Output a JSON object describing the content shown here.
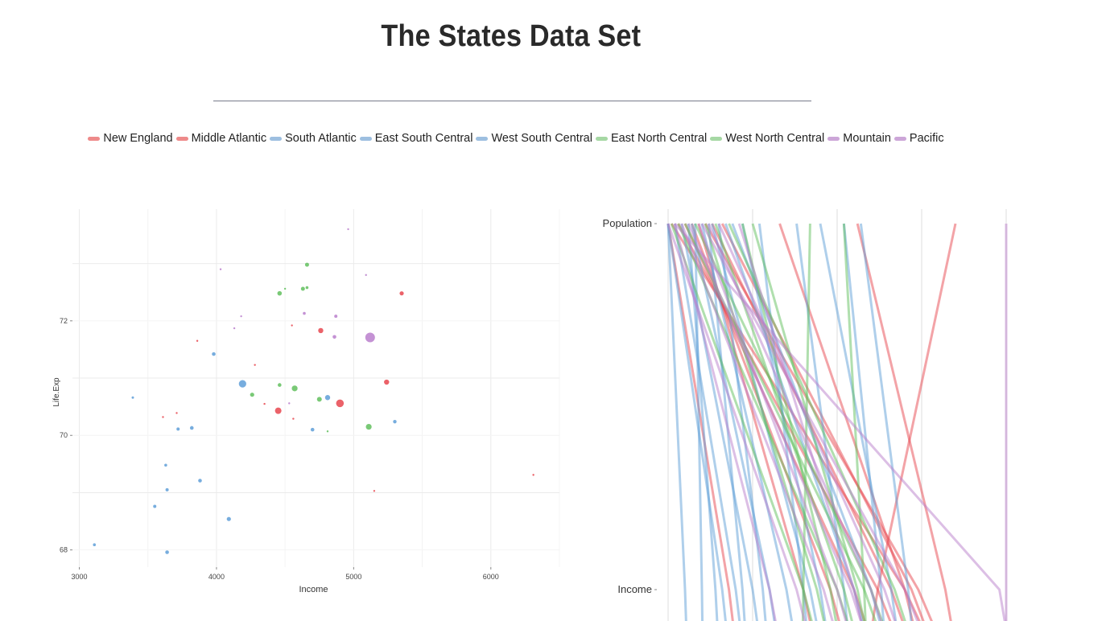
{
  "page": {
    "title": "The States Data Set"
  },
  "legend": {
    "items": [
      {
        "label": "New England",
        "color": "#ee8a8a"
      },
      {
        "label": "Middle Atlantic",
        "color": "#ee8a8a"
      },
      {
        "label": "South Atlantic",
        "color": "#9dbfe0"
      },
      {
        "label": "East South Central",
        "color": "#9dbfe0"
      },
      {
        "label": "West South Central",
        "color": "#9dbfe0"
      },
      {
        "label": "East North Central",
        "color": "#a6d8a4"
      },
      {
        "label": "West North Central",
        "color": "#a6d8a4"
      },
      {
        "label": "Mountain",
        "color": "#cca6d8"
      },
      {
        "label": "Pacific",
        "color": "#cca6d8"
      }
    ]
  },
  "colors": {
    "red": "#e8474f",
    "blue": "#5f9fd8",
    "green": "#62bf5e",
    "purple": "#ba7fcc"
  },
  "chart_data": [
    {
      "type": "scatter",
      "xlabel": "Income",
      "ylabel": "Life.Exp",
      "xlim": [
        2950,
        6500
      ],
      "ylim": [
        67.7,
        73.95
      ],
      "x_ticks": [
        "3000",
        "4000",
        "5000",
        "6000"
      ],
      "x_tick_values": [
        3000,
        4000,
        5000,
        6000
      ],
      "y_ticks": [
        "68",
        "70",
        "72"
      ],
      "y_tick_values": [
        68,
        70,
        72
      ],
      "grid": true,
      "points": [
        {
          "x": 4960,
          "y": 73.6,
          "r": 1.2,
          "color": "purple"
        },
        {
          "x": 4030,
          "y": 72.9,
          "r": 1.2,
          "color": "purple"
        },
        {
          "x": 4660,
          "y": 72.98,
          "r": 2.5,
          "color": "green"
        },
        {
          "x": 5090,
          "y": 72.8,
          "r": 1.2,
          "color": "purple"
        },
        {
          "x": 4630,
          "y": 72.56,
          "r": 2.5,
          "color": "green"
        },
        {
          "x": 4660,
          "y": 72.58,
          "r": 1.8,
          "color": "green"
        },
        {
          "x": 4500,
          "y": 72.56,
          "r": 1.2,
          "color": "green"
        },
        {
          "x": 4460,
          "y": 72.48,
          "r": 2.8,
          "color": "green"
        },
        {
          "x": 5350,
          "y": 72.48,
          "r": 2.6,
          "color": "red"
        },
        {
          "x": 4640,
          "y": 72.13,
          "r": 1.8,
          "color": "purple"
        },
        {
          "x": 4180,
          "y": 72.08,
          "r": 1.2,
          "color": "purple"
        },
        {
          "x": 4870,
          "y": 72.08,
          "r": 2.0,
          "color": "purple"
        },
        {
          "x": 4550,
          "y": 71.92,
          "r": 1.2,
          "color": "red"
        },
        {
          "x": 4130,
          "y": 71.87,
          "r": 1.2,
          "color": "purple"
        },
        {
          "x": 4760,
          "y": 71.83,
          "r": 3.2,
          "color": "red"
        },
        {
          "x": 3860,
          "y": 71.65,
          "r": 1.2,
          "color": "red"
        },
        {
          "x": 4860,
          "y": 71.72,
          "r": 2.3,
          "color": "purple"
        },
        {
          "x": 5120,
          "y": 71.71,
          "r": 6.0,
          "color": "purple"
        },
        {
          "x": 3980,
          "y": 71.42,
          "r": 2.3,
          "color": "blue"
        },
        {
          "x": 4280,
          "y": 71.23,
          "r": 1.2,
          "color": "red"
        },
        {
          "x": 4190,
          "y": 70.9,
          "r": 4.6,
          "color": "blue"
        },
        {
          "x": 5240,
          "y": 70.93,
          "r": 3.2,
          "color": "red"
        },
        {
          "x": 4460,
          "y": 70.88,
          "r": 2.3,
          "color": "green"
        },
        {
          "x": 4570,
          "y": 70.82,
          "r": 3.6,
          "color": "green"
        },
        {
          "x": 4260,
          "y": 70.71,
          "r": 2.6,
          "color": "green"
        },
        {
          "x": 3390,
          "y": 70.66,
          "r": 1.5,
          "color": "blue"
        },
        {
          "x": 4750,
          "y": 70.63,
          "r": 3.0,
          "color": "green"
        },
        {
          "x": 4810,
          "y": 70.66,
          "r": 3.2,
          "color": "blue"
        },
        {
          "x": 4900,
          "y": 70.56,
          "r": 4.8,
          "color": "red"
        },
        {
          "x": 4530,
          "y": 70.56,
          "r": 1.2,
          "color": "purple"
        },
        {
          "x": 4350,
          "y": 70.55,
          "r": 1.2,
          "color": "red"
        },
        {
          "x": 4450,
          "y": 70.43,
          "r": 4.0,
          "color": "red"
        },
        {
          "x": 3710,
          "y": 70.39,
          "r": 1.2,
          "color": "red"
        },
        {
          "x": 3610,
          "y": 70.32,
          "r": 1.2,
          "color": "red"
        },
        {
          "x": 4560,
          "y": 70.29,
          "r": 1.2,
          "color": "red"
        },
        {
          "x": 5300,
          "y": 70.24,
          "r": 2.2,
          "color": "blue"
        },
        {
          "x": 5110,
          "y": 70.15,
          "r": 3.6,
          "color": "green"
        },
        {
          "x": 3720,
          "y": 70.11,
          "r": 2.0,
          "color": "blue"
        },
        {
          "x": 3820,
          "y": 70.13,
          "r": 2.3,
          "color": "blue"
        },
        {
          "x": 4700,
          "y": 70.1,
          "r": 2.3,
          "color": "blue"
        },
        {
          "x": 4810,
          "y": 70.07,
          "r": 1.2,
          "color": "green"
        },
        {
          "x": 3630,
          "y": 69.48,
          "r": 1.8,
          "color": "blue"
        },
        {
          "x": 6310,
          "y": 69.31,
          "r": 1.2,
          "color": "red"
        },
        {
          "x": 3880,
          "y": 69.21,
          "r": 2.3,
          "color": "blue"
        },
        {
          "x": 3640,
          "y": 69.05,
          "r": 2.0,
          "color": "blue"
        },
        {
          "x": 5150,
          "y": 69.03,
          "r": 1.2,
          "color": "red"
        },
        {
          "x": 3550,
          "y": 68.76,
          "r": 2.0,
          "color": "blue"
        },
        {
          "x": 4090,
          "y": 68.54,
          "r": 2.6,
          "color": "blue"
        },
        {
          "x": 3110,
          "y": 68.09,
          "r": 1.8,
          "color": "blue"
        },
        {
          "x": 3640,
          "y": 67.96,
          "r": 2.3,
          "color": "blue"
        }
      ]
    },
    {
      "type": "parallel_coordinates",
      "axes": [
        "Population",
        "Income"
      ],
      "axis_scaled_range": [
        0,
        1
      ],
      "lines": [
        {
          "color": "red",
          "values": [
            0.0,
            0.18
          ]
        },
        {
          "color": "red",
          "values": [
            0.01,
            0.7
          ]
        },
        {
          "color": "red",
          "values": [
            0.03,
            0.62
          ]
        },
        {
          "color": "red",
          "values": [
            0.05,
            0.55
          ]
        },
        {
          "color": "red",
          "values": [
            0.07,
            0.48
          ]
        },
        {
          "color": "red",
          "values": [
            0.09,
            0.4
          ]
        },
        {
          "color": "red",
          "values": [
            0.11,
            0.74
          ]
        },
        {
          "color": "red",
          "values": [
            0.13,
            0.66
          ]
        },
        {
          "color": "red",
          "values": [
            0.16,
            0.72
          ]
        },
        {
          "color": "red",
          "values": [
            0.33,
            0.7
          ]
        },
        {
          "color": "red",
          "values": [
            0.56,
            0.82
          ]
        },
        {
          "color": "red",
          "values": [
            0.85,
            0.62
          ]
        },
        {
          "color": "blue",
          "values": [
            0.0,
            0.05
          ]
        },
        {
          "color": "blue",
          "values": [
            0.0,
            0.16
          ]
        },
        {
          "color": "blue",
          "values": [
            0.02,
            0.2
          ]
        },
        {
          "color": "blue",
          "values": [
            0.04,
            0.25
          ]
        },
        {
          "color": "blue",
          "values": [
            0.06,
            0.14
          ]
        },
        {
          "color": "blue",
          "values": [
            0.07,
            0.3
          ]
        },
        {
          "color": "blue",
          "values": [
            0.08,
            0.1
          ]
        },
        {
          "color": "blue",
          "values": [
            0.1,
            0.35
          ]
        },
        {
          "color": "blue",
          "values": [
            0.12,
            0.22
          ]
        },
        {
          "color": "blue",
          "values": [
            0.13,
            0.42
          ]
        },
        {
          "color": "blue",
          "values": [
            0.15,
            0.28
          ]
        },
        {
          "color": "blue",
          "values": [
            0.17,
            0.55
          ]
        },
        {
          "color": "blue",
          "values": [
            0.19,
            0.6
          ]
        },
        {
          "color": "blue",
          "values": [
            0.22,
            0.45
          ]
        },
        {
          "color": "blue",
          "values": [
            0.27,
            0.4
          ]
        },
        {
          "color": "blue",
          "values": [
            0.38,
            0.52
          ]
        },
        {
          "color": "blue",
          "values": [
            0.45,
            0.66
          ]
        },
        {
          "color": "blue",
          "values": [
            0.57,
            0.71
          ]
        },
        {
          "color": "blue",
          "values": [
            0.52,
            0.63
          ]
        },
        {
          "color": "green",
          "values": [
            0.01,
            0.4
          ]
        },
        {
          "color": "green",
          "values": [
            0.03,
            0.5
          ]
        },
        {
          "color": "green",
          "values": [
            0.05,
            0.58
          ]
        },
        {
          "color": "green",
          "values": [
            0.08,
            0.6
          ]
        },
        {
          "color": "green",
          "values": [
            0.11,
            0.44
          ]
        },
        {
          "color": "green",
          "values": [
            0.14,
            0.52
          ]
        },
        {
          "color": "green",
          "values": [
            0.18,
            0.67
          ]
        },
        {
          "color": "green",
          "values": [
            0.22,
            0.48
          ]
        },
        {
          "color": "green",
          "values": [
            0.25,
            0.56
          ]
        },
        {
          "color": "green",
          "values": [
            0.42,
            0.4
          ]
        },
        {
          "color": "green",
          "values": [
            0.52,
            0.58
          ]
        },
        {
          "color": "purple",
          "values": [
            0.0,
            0.38
          ]
        },
        {
          "color": "purple",
          "values": [
            0.02,
            0.3
          ]
        },
        {
          "color": "purple",
          "values": [
            0.04,
            0.46
          ]
        },
        {
          "color": "purple",
          "values": [
            0.06,
            0.54
          ]
        },
        {
          "color": "purple",
          "values": [
            0.09,
            0.5
          ]
        },
        {
          "color": "purple",
          "values": [
            0.12,
            0.6
          ]
        },
        {
          "color": "purple",
          "values": [
            0.15,
            0.64
          ]
        },
        {
          "color": "purple",
          "values": [
            0.21,
            0.55
          ]
        },
        {
          "color": "purple",
          "values": [
            0.1,
            0.7
          ]
        },
        {
          "color": "purple",
          "values": [
            1.0,
            1.0
          ]
        },
        {
          "color": "purple",
          "values": [
            0.02,
            0.98
          ]
        }
      ]
    }
  ]
}
